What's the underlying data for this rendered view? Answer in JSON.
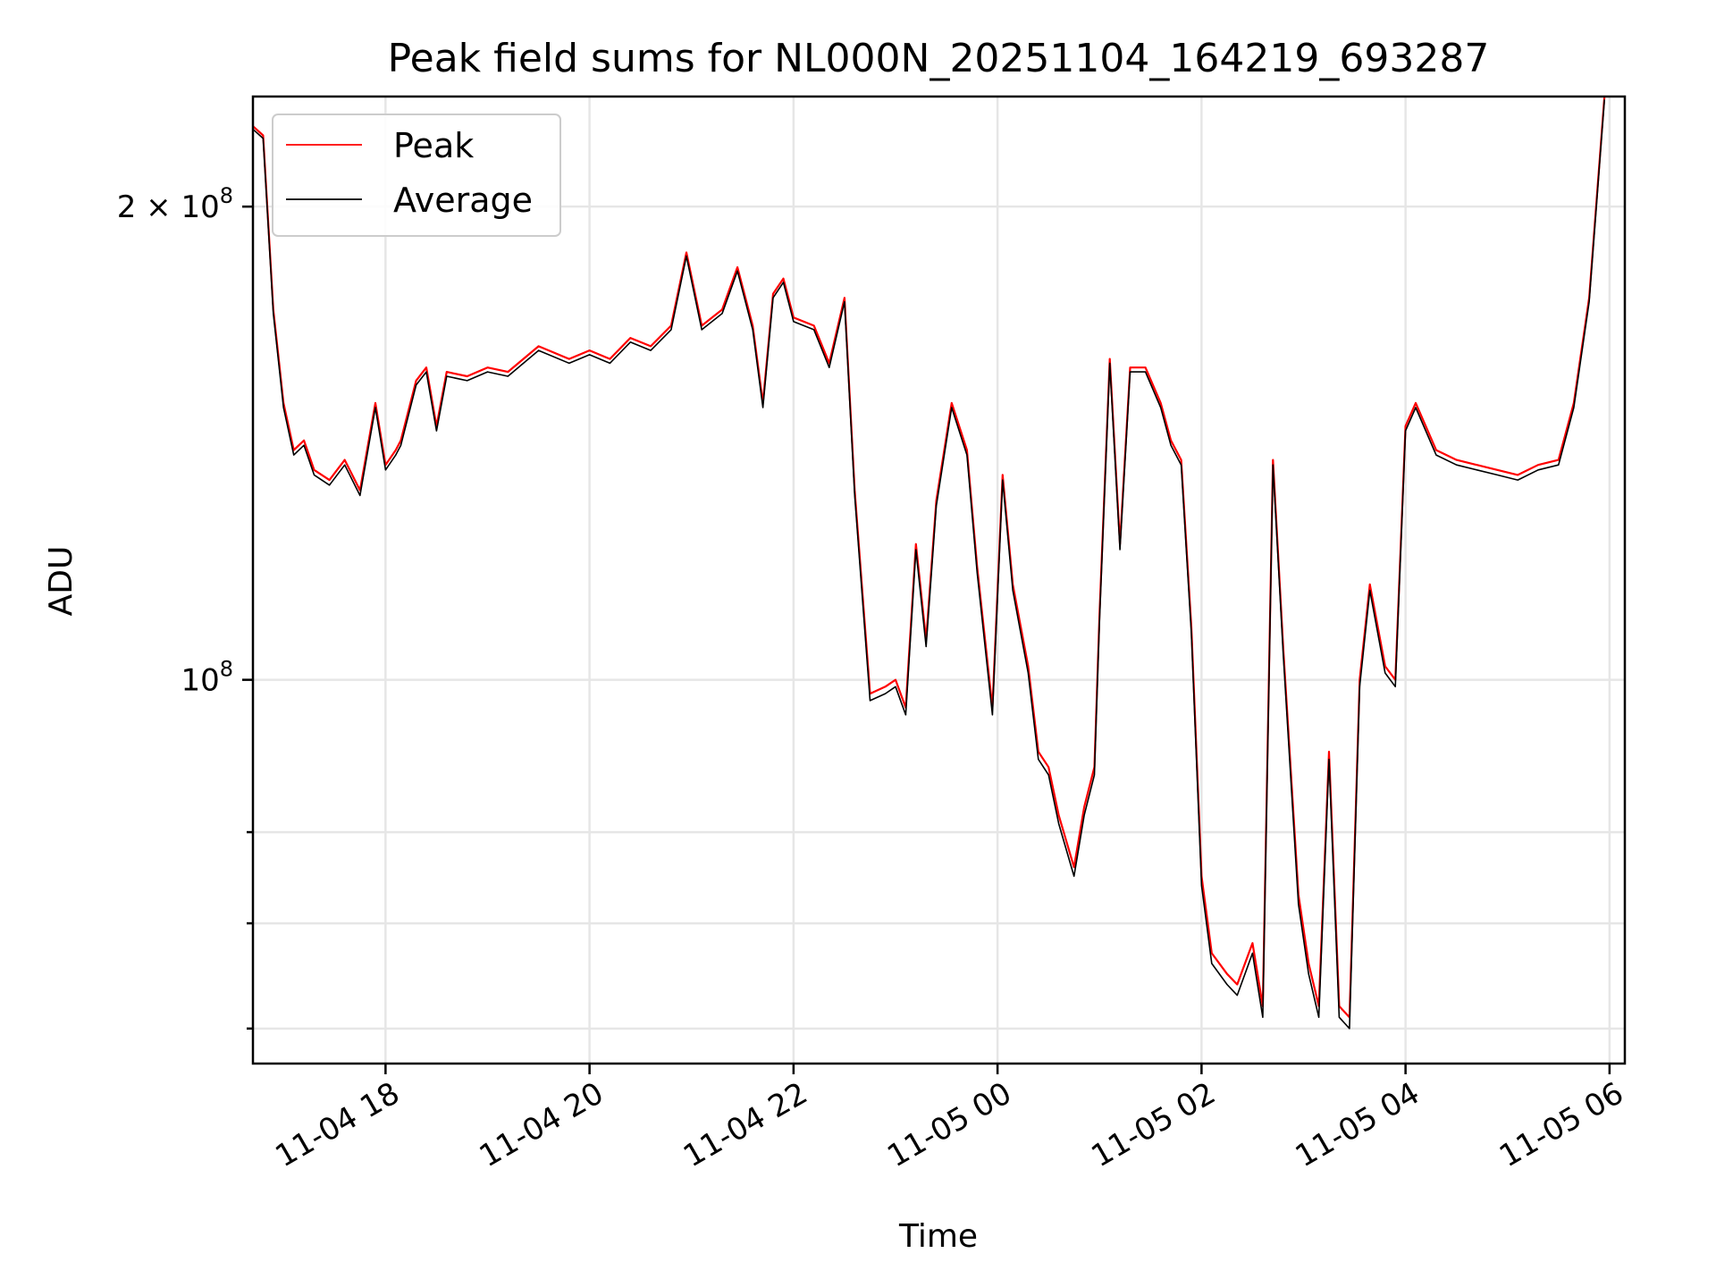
{
  "chart_data": {
    "type": "line",
    "title": "Peak field sums for NL000N_20251104_164219_693287",
    "xlabel": "Time",
    "ylabel": "ADU",
    "yscale": "log",
    "ylim": [
      57000000,
      235000000
    ],
    "xlim_hours": [
      16.7,
      30.15
    ],
    "x_unit": "hours since 2025-11-04 00:00",
    "x_ticks": [
      {
        "value": 18,
        "label": "11-04 18"
      },
      {
        "value": 20,
        "label": "11-04 20"
      },
      {
        "value": 22,
        "label": "11-04 22"
      },
      {
        "value": 24,
        "label": "11-05 00"
      },
      {
        "value": 26,
        "label": "11-05 02"
      },
      {
        "value": 28,
        "label": "11-05 04"
      },
      {
        "value": 30,
        "label": "11-05 06"
      }
    ],
    "y_major_ticks": [
      {
        "value": 200000000,
        "label_base": "2 × 10",
        "label_exp": "8"
      },
      {
        "value": 100000000,
        "label_base": "10",
        "label_exp": "8"
      }
    ],
    "y_minor_ticks": [
      60000000,
      70000000,
      80000000
    ],
    "grid": true,
    "legend_position": "top-left",
    "colors": {
      "peak": "#ff0000",
      "average": "#000000"
    },
    "series": [
      {
        "name": "Peak",
        "color": "#ff0000",
        "x": [
          16.7,
          16.8,
          16.9,
          17.0,
          17.1,
          17.2,
          17.3,
          17.45,
          17.6,
          17.75,
          17.9,
          18.0,
          18.1,
          18.15,
          18.3,
          18.4,
          18.5,
          18.6,
          18.8,
          19.0,
          19.2,
          19.5,
          19.8,
          20.0,
          20.2,
          20.4,
          20.6,
          20.8,
          20.95,
          21.1,
          21.3,
          21.45,
          21.6,
          21.7,
          21.8,
          21.9,
          22.0,
          22.2,
          22.35,
          22.5,
          22.6,
          22.75,
          22.9,
          23.0,
          23.1,
          23.2,
          23.3,
          23.4,
          23.55,
          23.7,
          23.8,
          23.95,
          24.05,
          24.15,
          24.3,
          24.4,
          24.5,
          24.6,
          24.75,
          24.85,
          24.95,
          25.0,
          25.1,
          25.2,
          25.3,
          25.45,
          25.6,
          25.7,
          25.8,
          25.9,
          26.0,
          26.1,
          26.25,
          26.35,
          26.5,
          26.6,
          26.7,
          26.8,
          26.95,
          27.05,
          27.15,
          27.25,
          27.35,
          27.45,
          27.55,
          27.65,
          27.8,
          27.9,
          28.0,
          28.1,
          28.3,
          28.5,
          28.7,
          28.9,
          29.1,
          29.3,
          29.5,
          29.65,
          29.8,
          29.95
        ],
        "y": [
          225,
          222,
          172,
          150,
          140,
          142,
          136,
          134,
          138,
          132,
          150,
          137,
          140,
          142,
          155,
          158,
          145,
          157,
          156,
          158,
          157,
          163,
          160,
          162,
          160,
          165,
          163,
          168,
          187,
          168,
          172,
          183,
          168,
          150,
          176,
          180,
          170,
          168,
          159,
          175,
          132,
          98,
          99,
          100,
          96,
          122,
          106,
          130,
          150,
          140,
          118,
          96,
          135,
          115,
          102,
          90,
          88,
          82,
          76,
          83,
          88,
          110,
          160,
          122,
          158,
          158,
          150,
          142,
          138,
          108,
          75,
          67,
          65,
          64,
          68,
          62,
          138,
          105,
          73,
          66,
          62,
          90,
          62,
          61,
          100,
          115,
          102,
          100,
          145,
          150,
          140,
          138,
          137,
          136,
          135,
          137,
          138,
          150,
          175,
          235
        ]
      },
      {
        "name": "Average",
        "color": "#000000",
        "x": [
          16.7,
          16.8,
          16.9,
          17.0,
          17.1,
          17.2,
          17.3,
          17.45,
          17.6,
          17.75,
          17.9,
          18.0,
          18.1,
          18.15,
          18.3,
          18.4,
          18.5,
          18.6,
          18.8,
          19.0,
          19.2,
          19.5,
          19.8,
          20.0,
          20.2,
          20.4,
          20.6,
          20.8,
          20.95,
          21.1,
          21.3,
          21.45,
          21.6,
          21.7,
          21.8,
          21.9,
          22.0,
          22.2,
          22.35,
          22.5,
          22.6,
          22.75,
          22.9,
          23.0,
          23.1,
          23.2,
          23.3,
          23.4,
          23.55,
          23.7,
          23.8,
          23.95,
          24.05,
          24.15,
          24.3,
          24.4,
          24.5,
          24.6,
          24.75,
          24.85,
          24.95,
          25.0,
          25.1,
          25.2,
          25.3,
          25.45,
          25.6,
          25.7,
          25.8,
          25.9,
          26.0,
          26.1,
          26.25,
          26.35,
          26.5,
          26.6,
          26.7,
          26.8,
          26.95,
          27.05,
          27.15,
          27.25,
          27.35,
          27.45,
          27.55,
          27.65,
          27.8,
          27.9,
          28.0,
          28.1,
          28.3,
          28.5,
          28.7,
          28.9,
          29.1,
          29.3,
          29.5,
          29.65,
          29.8,
          29.95
        ],
        "y": [
          224,
          221,
          171,
          149,
          139,
          141,
          135,
          133,
          137,
          131,
          149,
          136,
          139,
          141,
          154,
          157,
          144,
          156,
          155,
          157,
          156,
          162,
          159,
          161,
          159,
          164,
          162,
          167,
          186,
          167,
          171,
          182,
          167,
          149,
          175,
          179,
          169,
          167,
          158,
          174,
          131,
          97,
          98,
          99,
          95,
          121,
          105,
          129,
          149,
          139,
          117,
          95,
          134,
          114,
          101,
          89,
          87,
          81,
          75,
          82,
          87,
          109,
          159,
          121,
          157,
          157,
          149,
          141,
          137,
          107,
          74,
          66,
          64,
          63,
          67,
          61,
          137,
          104,
          72,
          65,
          61,
          89,
          61,
          60,
          99,
          114,
          101,
          99,
          144,
          149,
          139,
          137,
          136,
          135,
          134,
          136,
          137,
          149,
          174,
          234
        ]
      }
    ]
  }
}
